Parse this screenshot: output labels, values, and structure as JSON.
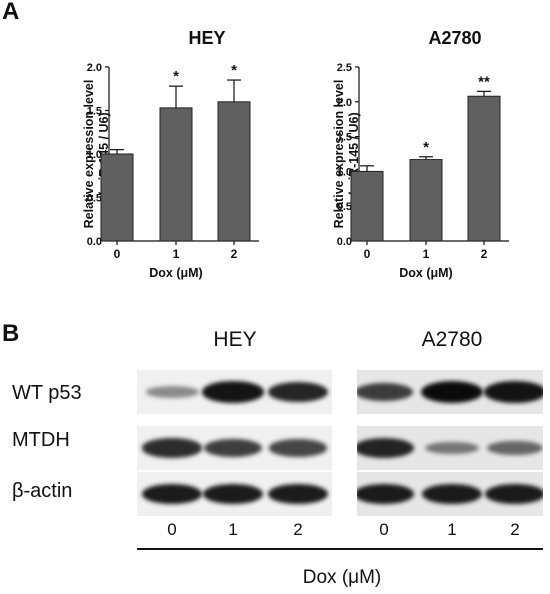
{
  "panels": {
    "a_label": "A",
    "b_label": "B"
  },
  "chart_data": [
    {
      "type": "bar",
      "title": "HEY",
      "categories": [
        "0",
        "1",
        "2"
      ],
      "values": [
        1.0,
        1.53,
        1.6
      ],
      "errors": [
        0.05,
        0.25,
        0.25
      ],
      "significance": [
        "",
        "*",
        "*"
      ],
      "xlabel": "Dox (μM)",
      "ylabel": [
        "Relative expression level",
        "(miR-145 / U6)"
      ],
      "ylim": [
        0,
        2.0
      ],
      "yticks": [
        "0.0",
        "0.5",
        "1.0",
        "1.5",
        "2.0"
      ],
      "bar_color": "#606060",
      "grid": false
    },
    {
      "type": "bar",
      "title": "A2780",
      "categories": [
        "0",
        "1",
        "2"
      ],
      "values": [
        1.0,
        1.17,
        2.08
      ],
      "errors": [
        0.08,
        0.04,
        0.07
      ],
      "significance": [
        "",
        "*",
        "**"
      ],
      "xlabel": "Dox (μM)",
      "ylabel": [
        "Relative expression level",
        "(miR-145 / U6)"
      ],
      "ylim": [
        0,
        2.5
      ],
      "yticks": [
        "0.0",
        "0.5",
        "1.0",
        "1.5",
        "2.0",
        "2.5"
      ],
      "bar_color": "#606060",
      "grid": false
    }
  ],
  "blot": {
    "cell_lines": [
      "HEY",
      "A2780"
    ],
    "rows": [
      "WT p53",
      "MTDH",
      "β-actin"
    ],
    "lanes": [
      "0",
      "1",
      "2"
    ],
    "xlabel": "Dox (μM)",
    "intensity": {
      "HEY": {
        "WT p53": [
          0.25,
          0.95,
          0.85
        ],
        "MTDH": [
          0.8,
          0.7,
          0.65
        ],
        "β-actin": [
          0.9,
          0.9,
          0.9
        ]
      },
      "A2780": {
        "WT p53": [
          0.7,
          1.0,
          0.95
        ],
        "MTDH": [
          0.85,
          0.35,
          0.45
        ],
        "β-actin": [
          0.9,
          0.9,
          0.9
        ]
      }
    }
  }
}
